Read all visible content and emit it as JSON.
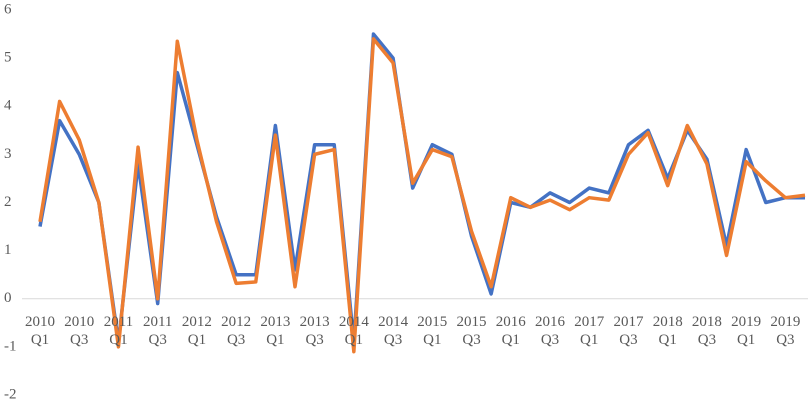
{
  "chart_data": {
    "type": "line",
    "categories": [
      "2010 Q1",
      null,
      "2010 Q3",
      null,
      "2011 Q1",
      null,
      "2011 Q3",
      null,
      "2012 Q1",
      null,
      "2012 Q3",
      null,
      "2013 Q1",
      null,
      "2013 Q3",
      null,
      "2014 Q1",
      null,
      "2014 Q3",
      null,
      "2015 Q1",
      null,
      "2015 Q3",
      null,
      "2016 Q1",
      null,
      "2016 Q3",
      null,
      "2017 Q1",
      null,
      "2017 Q3",
      null,
      "2018 Q1",
      null,
      "2018 Q3",
      null,
      "2019 Q1",
      null,
      "2019 Q3",
      null
    ],
    "series": [
      {
        "color": "#4472c4",
        "values": [
          1.5,
          3.7,
          3.0,
          2.0,
          -0.9,
          2.8,
          -0.1,
          4.7,
          3.2,
          1.7,
          0.5,
          0.5,
          3.6,
          0.6,
          3.2,
          3.2,
          -0.9,
          5.5,
          5.0,
          2.3,
          3.2,
          3.0,
          1.3,
          0.1,
          2.0,
          1.9,
          2.2,
          2.0,
          2.3,
          2.2,
          3.2,
          3.5,
          2.5,
          3.5,
          2.9,
          1.1,
          3.1,
          2.0,
          2.1,
          2.1
        ]
      },
      {
        "color": "#ed7d31",
        "values": [
          1.6,
          4.1,
          3.3,
          2.0,
          -1.0,
          3.15,
          0.0,
          5.35,
          3.3,
          1.6,
          0.32,
          0.35,
          3.4,
          0.25,
          3.0,
          3.1,
          -1.1,
          5.4,
          4.9,
          2.4,
          3.1,
          2.95,
          1.4,
          0.25,
          2.1,
          1.9,
          2.05,
          1.85,
          2.1,
          2.05,
          3.0,
          3.45,
          2.35,
          3.6,
          2.8,
          0.9,
          2.85,
          2.45,
          2.1,
          2.15
        ]
      }
    ],
    "ylim": [
      -2,
      6
    ],
    "yticks": [
      -2,
      -1,
      0,
      1,
      2,
      3,
      4,
      5,
      6
    ],
    "grid": false
  }
}
